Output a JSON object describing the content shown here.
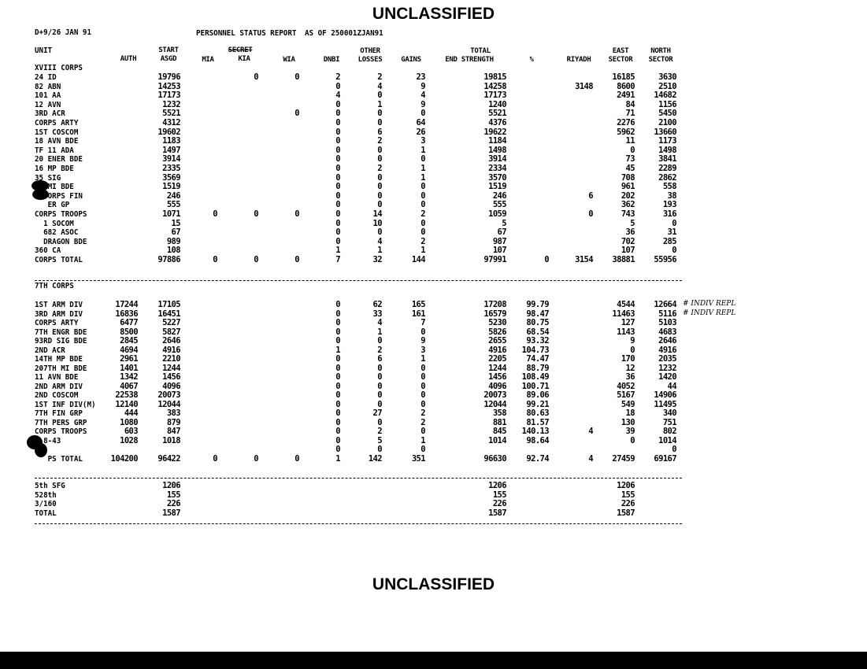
{
  "classification_top": "UNCLASSIFIED",
  "classification_bottom": "UNCLASSIFIED",
  "header": {
    "date": "D+9/26 JAN 91",
    "title": "PERSONNEL STATUS REPORT",
    "as_of": "AS OF 250001ZJAN91",
    "stamp": "SECRET"
  },
  "columns": {
    "unit": "UNIT",
    "auth": "AUTH",
    "start": "START",
    "asgd": "ASGD",
    "mia": "MIA",
    "kia": "KIA",
    "wia": "WIA",
    "dnbi": "DNBI",
    "other": "OTHER",
    "losses": "LOSSES",
    "gains": "GAINS",
    "total": "TOTAL",
    "end_strength": "END STRENGTH",
    "pct": "%",
    "riyadh": "RIYADH",
    "east": "EAST",
    "north": "NORTH",
    "sector": "SECTOR"
  },
  "xviii": {
    "title": "XVIII CORPS",
    "rows": [
      [
        "24 ID",
        "",
        "19796",
        "",
        "0",
        "0",
        "2",
        "2",
        "23",
        "19815",
        "",
        "",
        "16185",
        "3630"
      ],
      [
        "82 ABN",
        "",
        "14253",
        "",
        "",
        "",
        "0",
        "4",
        "9",
        "14258",
        "",
        "3148",
        "8600",
        "2510"
      ],
      [
        "101 AA",
        "",
        "17173",
        "",
        "",
        "",
        "4",
        "0",
        "4",
        "17173",
        "",
        "",
        "2491",
        "14682"
      ],
      [
        "12 AVN",
        "",
        "1232",
        "",
        "",
        "",
        "0",
        "1",
        "9",
        "1240",
        "",
        "",
        "84",
        "1156"
      ],
      [
        "3RD ACR",
        "",
        "5521",
        "",
        "",
        "0",
        "0",
        "0",
        "0",
        "5521",
        "",
        "",
        "71",
        "5450"
      ],
      [
        "CORPS ARTY",
        "",
        "4312",
        "",
        "",
        "",
        "0",
        "0",
        "64",
        "4376",
        "",
        "",
        "2276",
        "2100"
      ],
      [
        "1ST COSCOM",
        "",
        "19602",
        "",
        "",
        "",
        "0",
        "6",
        "26",
        "19622",
        "",
        "",
        "5962",
        "13660"
      ],
      [
        "18 AVN BDE",
        "",
        "1183",
        "",
        "",
        "",
        "0",
        "2",
        "3",
        "1184",
        "",
        "",
        "11",
        "1173"
      ],
      [
        "TF 11 ADA",
        "",
        "1497",
        "",
        "",
        "",
        "0",
        "0",
        "1",
        "1498",
        "",
        "",
        "0",
        "1498"
      ],
      [
        "20 ENER BDE",
        "",
        "3914",
        "",
        "",
        "",
        "0",
        "0",
        "0",
        "3914",
        "",
        "",
        "73",
        "3841"
      ],
      [
        "16 MP BDE",
        "",
        "2335",
        "",
        "",
        "",
        "0",
        "2",
        "1",
        "2334",
        "",
        "",
        "45",
        "2289"
      ],
      [
        "35 SIG",
        "",
        "3569",
        "",
        "",
        "",
        "0",
        "0",
        "1",
        "3570",
        "",
        "",
        "708",
        "2862"
      ],
      [
        "   MI BDE",
        "",
        "1519",
        "",
        "",
        "",
        "0",
        "0",
        "0",
        "1519",
        "",
        "",
        "961",
        "558"
      ],
      [
        "   ORPS FIN",
        "",
        "246",
        "",
        "",
        "",
        "0",
        "0",
        "0",
        "246",
        "",
        "6",
        "202",
        "38"
      ],
      [
        "   ER GP",
        "",
        "555",
        "",
        "",
        "",
        "0",
        "0",
        "0",
        "555",
        "",
        "",
        "362",
        "193"
      ],
      [
        "CORPS TROOPS",
        "",
        "1071",
        "0",
        "0",
        "0",
        "0",
        "14",
        "2",
        "1059",
        "",
        "0",
        "743",
        "316"
      ],
      [
        "  1 SOCOM",
        "",
        "15",
        "",
        "",
        "",
        "0",
        "10",
        "0",
        "5",
        "",
        "",
        "5",
        "0"
      ],
      [
        "  682 ASOC",
        "",
        "67",
        "",
        "",
        "",
        "0",
        "0",
        "0",
        "67",
        "",
        "",
        "36",
        "31"
      ],
      [
        "  DRAGON BDE",
        "",
        "989",
        "",
        "",
        "",
        "0",
        "4",
        "2",
        "987",
        "",
        "",
        "702",
        "285"
      ],
      [
        "360 CA",
        "",
        "108",
        "",
        "",
        "",
        "1",
        "1",
        "1",
        "107",
        "",
        "",
        "107",
        "0"
      ],
      [
        "CORPS TOTAL",
        "",
        "97886",
        "0",
        "0",
        "0",
        "7",
        "32",
        "144",
        "97991",
        "0",
        "3154",
        "38881",
        "55956"
      ]
    ]
  },
  "vii": {
    "title": "7TH CORPS",
    "rows": [
      [
        "1ST ARM DIV",
        "17244",
        "17105",
        "",
        "",
        "",
        "0",
        "62",
        "165",
        "17208",
        "99.79",
        "",
        "4544",
        "12664"
      ],
      [
        "3RD ARM DIV",
        "16836",
        "16451",
        "",
        "",
        "",
        "0",
        "33",
        "161",
        "16579",
        "98.47",
        "",
        "11463",
        "5116"
      ],
      [
        "CORPS ARTY",
        "6477",
        "5227",
        "",
        "",
        "",
        "0",
        "4",
        "7",
        "5230",
        "80.75",
        "",
        "127",
        "5103"
      ],
      [
        "7TH ENGR BDE",
        "8500",
        "5827",
        "",
        "",
        "",
        "0",
        "1",
        "0",
        "5826",
        "68.54",
        "",
        "1143",
        "4683"
      ],
      [
        "93RD SIG BDE",
        "2845",
        "2646",
        "",
        "",
        "",
        "0",
        "0",
        "9",
        "2655",
        "93.32",
        "",
        "9",
        "2646"
      ],
      [
        "2ND ACR",
        "4694",
        "4916",
        "",
        "",
        "",
        "1",
        "2",
        "3",
        "4916",
        "104.73",
        "",
        "0",
        "4916"
      ],
      [
        "14TH MP BDE",
        "2961",
        "2210",
        "",
        "",
        "",
        "0",
        "6",
        "1",
        "2205",
        "74.47",
        "",
        "170",
        "2035"
      ],
      [
        "207TH MI BDE",
        "1401",
        "1244",
        "",
        "",
        "",
        "0",
        "0",
        "0",
        "1244",
        "88.79",
        "",
        "12",
        "1232"
      ],
      [
        "11 AVN BDE",
        "1342",
        "1456",
        "",
        "",
        "",
        "0",
        "0",
        "0",
        "1456",
        "108.49",
        "",
        "36",
        "1420"
      ],
      [
        "2ND ARM DIV",
        "4067",
        "4096",
        "",
        "",
        "",
        "0",
        "0",
        "0",
        "4096",
        "100.71",
        "",
        "4052",
        "44"
      ],
      [
        "2ND COSCOM",
        "22538",
        "20073",
        "",
        "",
        "",
        "0",
        "0",
        "0",
        "20073",
        "89.06",
        "",
        "5167",
        "14906"
      ],
      [
        "1ST INF DIV(M)",
        "12140",
        "12044",
        "",
        "",
        "",
        "0",
        "0",
        "0",
        "12044",
        "99.21",
        "",
        "549",
        "11495"
      ],
      [
        "7TH FIN GRP",
        "444",
        "383",
        "",
        "",
        "",
        "0",
        "27",
        "2",
        "358",
        "80.63",
        "",
        "18",
        "340"
      ],
      [
        "7TH PERS GRP",
        "1080",
        "879",
        "",
        "",
        "",
        "0",
        "0",
        "2",
        "881",
        "81.57",
        "",
        "130",
        "751"
      ],
      [
        "CORPS TROOPS",
        "603",
        "847",
        "",
        "",
        "",
        "0",
        "2",
        "0",
        "845",
        "140.13",
        "4",
        "39",
        "802"
      ],
      [
        "  8-43",
        "1028",
        "1018",
        "",
        "",
        "",
        "0",
        "5",
        "1",
        "1014",
        "98.64",
        "",
        "0",
        "1014"
      ],
      [
        "",
        "",
        "",
        "",
        "",
        "",
        "0",
        "0",
        "0",
        "",
        "",
        "",
        "",
        "0"
      ],
      [
        "   PS TOTAL",
        "104200",
        "96422",
        "0",
        "0",
        "0",
        "1",
        "142",
        "351",
        "96630",
        "92.74",
        "4",
        "27459",
        "69167"
      ]
    ],
    "annotations": [
      "# INDIV REPL",
      "# INDIV REPL"
    ]
  },
  "other": {
    "rows": [
      [
        "5th SFG",
        "1206",
        "1206",
        "1206"
      ],
      [
        "528th",
        "155",
        "155",
        "155"
      ],
      [
        "3/160",
        "226",
        "226",
        "226"
      ],
      [
        "TOTAL",
        "1587",
        "1587",
        "1587"
      ]
    ]
  }
}
